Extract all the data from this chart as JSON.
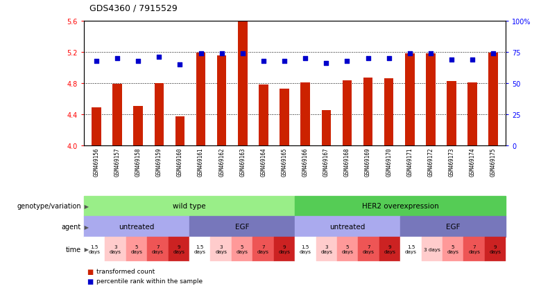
{
  "title": "GDS4360 / 7915529",
  "samples": [
    "GSM469156",
    "GSM469157",
    "GSM469158",
    "GSM469159",
    "GSM469160",
    "GSM469161",
    "GSM469162",
    "GSM469163",
    "GSM469164",
    "GSM469165",
    "GSM469166",
    "GSM469167",
    "GSM469168",
    "GSM469169",
    "GSM469170",
    "GSM469171",
    "GSM469172",
    "GSM469173",
    "GSM469174",
    "GSM469175"
  ],
  "bar_values": [
    4.49,
    4.79,
    4.51,
    4.8,
    4.37,
    5.19,
    5.16,
    5.59,
    4.78,
    4.73,
    4.81,
    4.45,
    4.84,
    4.87,
    4.86,
    5.18,
    5.18,
    4.83,
    4.81,
    5.19
  ],
  "dot_values": [
    68,
    70,
    68,
    71,
    65,
    74,
    74,
    74,
    68,
    68,
    70,
    66,
    68,
    70,
    70,
    74,
    74,
    69,
    69,
    74
  ],
  "ylim_left": [
    4.0,
    5.6
  ],
  "ylim_right": [
    0,
    100
  ],
  "yticks_left": [
    4.0,
    4.4,
    4.8,
    5.2,
    5.6
  ],
  "yticks_right": [
    0,
    25,
    50,
    75,
    100
  ],
  "ytick_labels_right": [
    "0",
    "25",
    "50",
    "75",
    "100%"
  ],
  "bar_color": "#cc2200",
  "dot_color": "#0000cc",
  "plot_bg": "#ffffff",
  "xtick_bg": "#d8d8d8",
  "genotype_wt_color": "#99ee88",
  "genotype_her2_color": "#55cc55",
  "agent_untreated_color": "#aaaaee",
  "agent_egf_color": "#7777bb",
  "time_colors": [
    "#ffffff",
    "#ffcccc",
    "#ff9999",
    "#ee5555",
    "#cc2222"
  ],
  "time_labels": [
    "1.5\ndays",
    "3\ndays",
    "5\ndays",
    "7\ndays",
    "9\ndays"
  ],
  "row_labels": [
    "genotype/variation",
    "agent",
    "time"
  ],
  "legend_red_label": "transformed count",
  "legend_blue_label": "percentile rank within the sample"
}
